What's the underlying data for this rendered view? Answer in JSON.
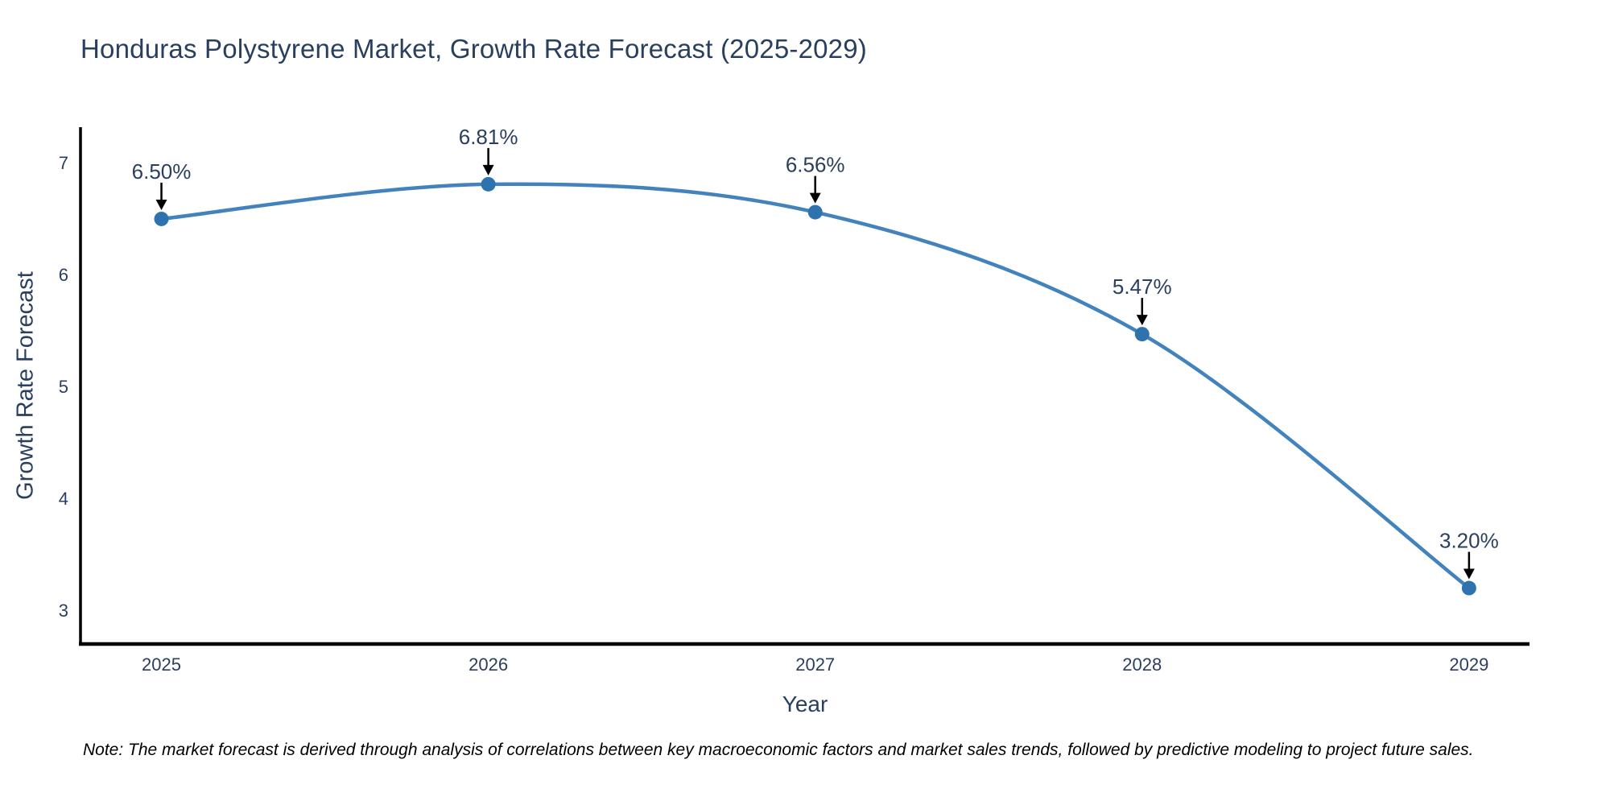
{
  "title": "Honduras Polystyrene Market, Growth Rate Forecast (2025-2029)",
  "note": "Note: The market forecast is derived through analysis of correlations between key macroeconomic factors and market sales trends, followed by predictive modeling to project future sales.",
  "chart_data": {
    "type": "line",
    "title": "Honduras Polystyrene Market, Growth Rate Forecast (2025-2029)",
    "xlabel": "Year",
    "ylabel": "Growth Rate Forecast",
    "x": [
      2025,
      2026,
      2027,
      2028,
      2029
    ],
    "values": [
      6.5,
      6.81,
      6.56,
      5.47,
      3.2
    ],
    "point_labels": [
      "6.50%",
      "6.81%",
      "6.56%",
      "5.47%",
      "3.20%"
    ],
    "x_ticks": [
      "2025",
      "2026",
      "2027",
      "2028",
      "2029"
    ],
    "y_ticks": [
      7,
      6,
      5,
      4,
      3
    ],
    "xlim": [
      2024.75,
      2029.185
    ],
    "ylim": [
      2.7,
      7.32
    ],
    "line_shape": "spline",
    "grid": false,
    "legend": "none",
    "annotations_have_arrows": true,
    "colors": {
      "line": "#4383bd",
      "marker": "#2e73ad",
      "axis": "#000000",
      "text": "#2a3f5f",
      "annotation_text": "#2a3f5f",
      "annotation_arrow": "#000000",
      "background": "#ffffff"
    }
  }
}
